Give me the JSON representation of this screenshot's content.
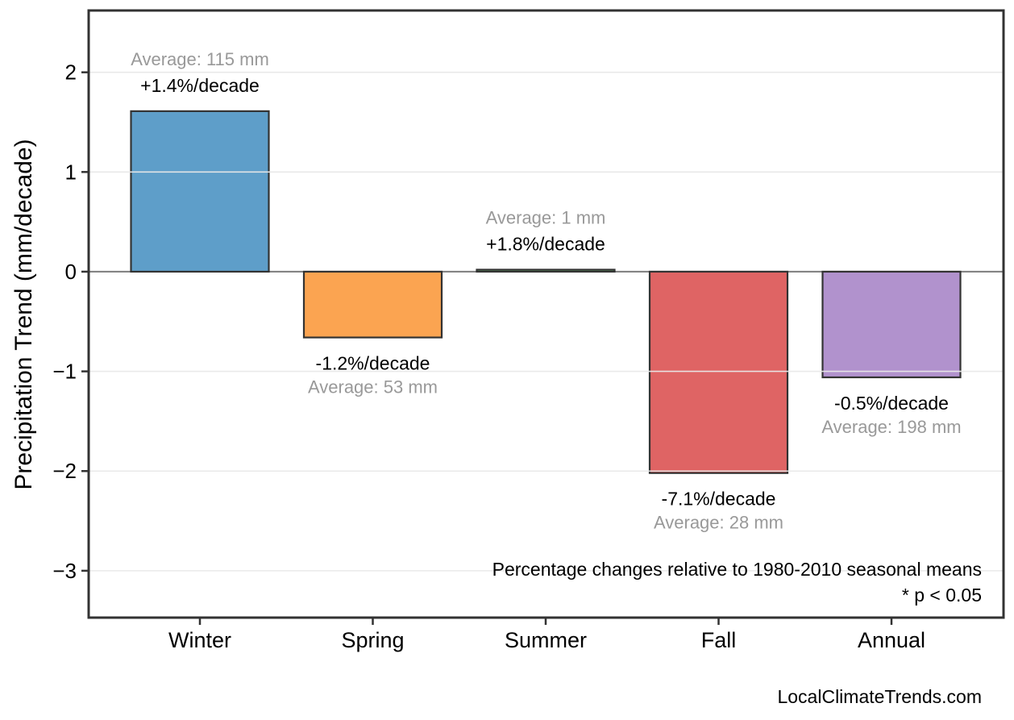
{
  "page": {
    "background_color": "#ffffff",
    "footer_credit": "LocalClimateTrends.com"
  },
  "chart_data": {
    "type": "bar",
    "title": "",
    "xlabel": "",
    "ylabel": "Precipitation Trend (mm/decade)",
    "categories": [
      "Winter",
      "Spring",
      "Summer",
      "Fall",
      "Annual"
    ],
    "values": [
      1.61,
      -0.66,
      0.02,
      -2.02,
      -1.06
    ],
    "pct_labels": [
      "+1.4%/decade",
      "-1.2%/decade",
      "+1.8%/decade",
      "-7.1%/decade",
      "-0.5%/decade"
    ],
    "avg_labels": [
      "Average: 115 mm",
      "Average: 53 mm",
      "Average: 1 mm",
      "Average: 28 mm",
      "Average: 198 mm"
    ],
    "bar_colors": [
      "#5E9EC9",
      "#FBA451",
      "#62B96A",
      "#DF6464",
      "#B192CD"
    ],
    "bar_edge_color": "#333333",
    "yticks": [
      2,
      1,
      0,
      -1,
      -2,
      -3
    ],
    "ytick_labels": [
      "2",
      "1",
      "0",
      "−1",
      "−2",
      "−3"
    ],
    "ylim": [
      -3.47,
      2.62
    ],
    "grid": true,
    "gridline_color": "#E8E8E8",
    "zero_line_color": "#848484",
    "pct_label_color": "#000000",
    "avg_label_color": "#999999",
    "axis_text_color": "#000000",
    "legend": "none",
    "annotation_line1": "Percentage changes relative to 1980-2010 seasonal means",
    "annotation_line2": "* p < 0.05"
  }
}
